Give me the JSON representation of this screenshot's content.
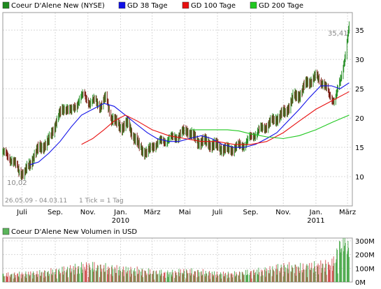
{
  "chart_data": [
    {
      "type": "line",
      "title": "",
      "xlabel": "",
      "ylabel": "",
      "legend_position": "top",
      "x_tick_labels": [
        "Juli",
        "Sep.",
        "Nov.",
        "Jan.",
        "März",
        "Mai",
        "Juli",
        "Sep.",
        "Nov.",
        "Jan.",
        "März"
      ],
      "x_year_labels": [
        {
          "label": "2010",
          "under_tick": 3
        },
        {
          "label": "2011",
          "under_tick": 9
        }
      ],
      "y_ticks": [
        10,
        15,
        20,
        25,
        30,
        35
      ],
      "ylim": [
        5,
        38
      ],
      "grid": true,
      "annotations": {
        "max_label": "35,41",
        "min_label": "10,02",
        "date_range": "26.05.09 - 04.03.11",
        "tick_info": "1 Tick = 1 Tag"
      },
      "series": [
        {
          "name": "Coeur D'Alene New (NYSE)",
          "color": "#1e8a1e",
          "x": [
            "2009-05-26",
            "2009-06-05",
            "2009-06-15",
            "2009-06-25",
            "2009-07-05",
            "2009-07-15",
            "2009-07-25",
            "2009-08-05",
            "2009-08-20",
            "2009-09-05",
            "2009-09-20",
            "2009-10-01",
            "2009-10-15",
            "2009-10-25",
            "2009-11-05",
            "2009-11-15",
            "2009-11-25",
            "2009-12-05",
            "2009-12-15",
            "2009-12-25",
            "2010-01-05",
            "2010-01-15",
            "2010-01-25",
            "2010-02-05",
            "2010-02-20",
            "2010-03-05",
            "2010-03-20",
            "2010-04-05",
            "2010-04-20",
            "2010-05-05",
            "2010-05-15",
            "2010-05-25",
            "2010-06-05",
            "2010-06-20",
            "2010-07-05",
            "2010-07-20",
            "2010-08-05",
            "2010-08-20",
            "2010-09-05",
            "2010-09-20",
            "2010-10-05",
            "2010-10-20",
            "2010-11-05",
            "2010-11-20",
            "2010-12-01",
            "2010-12-15",
            "2011-01-01",
            "2011-01-15",
            "2011-01-25",
            "2011-02-05",
            "2011-02-15",
            "2011-02-25",
            "2011-03-04"
          ],
          "values": [
            14,
            13.5,
            12.5,
            11,
            10.5,
            12,
            14,
            15,
            16,
            20,
            22,
            21,
            23,
            24,
            22.5,
            23,
            22,
            23.5,
            20,
            19,
            18.5,
            19,
            17,
            15,
            14,
            15.5,
            16,
            16.5,
            17,
            18,
            17,
            16,
            16,
            15.5,
            15,
            14.5,
            15,
            15.5,
            17,
            18,
            19,
            20,
            21,
            23.5,
            24,
            26,
            27,
            26,
            24,
            23,
            26,
            31,
            35.4
          ]
        },
        {
          "name": "GD 38 Tage",
          "color": "#1010e8",
          "x": [
            "2009-07-15",
            "2009-08-01",
            "2009-08-20",
            "2009-09-10",
            "2009-10-01",
            "2009-10-20",
            "2009-11-10",
            "2009-12-01",
            "2009-12-20",
            "2010-01-10",
            "2010-01-30",
            "2010-02-20",
            "2010-03-10",
            "2010-04-01",
            "2010-04-20",
            "2010-05-10",
            "2010-06-01",
            "2010-06-20",
            "2010-07-10",
            "2010-08-01",
            "2010-08-20",
            "2010-09-10",
            "2010-10-01",
            "2010-10-20",
            "2010-11-10",
            "2010-12-01",
            "2010-12-20",
            "2011-01-10",
            "2011-01-30",
            "2011-02-15",
            "2011-03-04"
          ],
          "values": [
            12,
            12.5,
            14,
            16,
            18.5,
            20.5,
            21.5,
            22.5,
            22,
            20.5,
            19,
            17.5,
            16.5,
            16,
            16,
            16.5,
            17,
            16.5,
            15.5,
            15,
            15,
            15.5,
            16.5,
            17.5,
            19.5,
            21.5,
            23.5,
            25.5,
            25.5,
            25,
            26
          ]
        },
        {
          "name": "GD 100 Tage",
          "color": "#e81010",
          "x": [
            "2009-10-20",
            "2009-11-10",
            "2009-12-01",
            "2009-12-20",
            "2010-01-10",
            "2010-02-01",
            "2010-03-01",
            "2010-04-01",
            "2010-05-01",
            "2010-06-01",
            "2010-07-01",
            "2010-08-01",
            "2010-09-01",
            "2010-10-01",
            "2010-11-01",
            "2010-12-01",
            "2011-01-01",
            "2011-02-01",
            "2011-03-04"
          ],
          "values": [
            15.5,
            16.5,
            18,
            19.5,
            20.5,
            19.5,
            18,
            17,
            16.5,
            16,
            16,
            15.5,
            15.5,
            16,
            17.5,
            19.5,
            21.5,
            23,
            24.5
          ]
        },
        {
          "name": "GD 200 Tage",
          "color": "#20c820",
          "x": [
            "2010-05-15",
            "2010-06-01",
            "2010-07-01",
            "2010-07-20",
            "2010-08-10",
            "2010-09-01",
            "2010-10-01",
            "2010-11-01",
            "2010-12-01",
            "2011-01-01",
            "2011-02-01",
            "2011-03-04"
          ],
          "values": [
            18,
            18,
            18,
            18,
            17.8,
            17.3,
            16.8,
            16.5,
            17,
            18,
            19.3,
            20.5
          ]
        }
      ]
    },
    {
      "type": "bar",
      "title": "Coeur D'Alene New Volumen in USD",
      "y_ticks": [
        0,
        100,
        200,
        300
      ],
      "y_tick_labels": [
        "0M",
        "100M",
        "200M",
        "300M"
      ],
      "ylim": [
        0,
        320
      ],
      "unit": "M USD",
      "legend_color": "#5ab45a",
      "up_color": "#4aa84a",
      "down_color": "#d05050",
      "x": [
        "2009-06-01",
        "2009-07-01",
        "2009-08-01",
        "2009-09-01",
        "2009-10-01",
        "2009-11-01",
        "2009-12-01",
        "2010-01-01",
        "2010-02-01",
        "2010-03-01",
        "2010-04-01",
        "2010-05-01",
        "2010-06-01",
        "2010-07-01",
        "2010-08-01",
        "2010-09-01",
        "2010-10-01",
        "2010-11-01",
        "2010-12-01",
        "2011-01-01",
        "2011-02-01",
        "2011-03-01"
      ],
      "values": [
        40,
        45,
        50,
        60,
        75,
        90,
        80,
        70,
        65,
        55,
        50,
        60,
        55,
        45,
        45,
        55,
        65,
        85,
        80,
        90,
        100,
        300
      ]
    }
  ]
}
